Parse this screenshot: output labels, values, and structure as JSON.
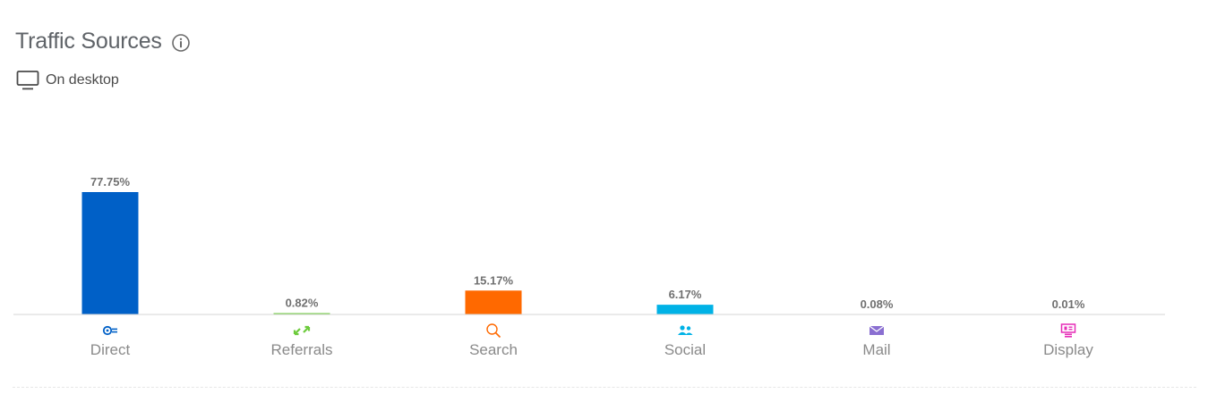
{
  "header": {
    "title": "Traffic Sources",
    "subtitle": "On desktop"
  },
  "icons": {
    "info": "info-icon",
    "device": "desktop-icon"
  },
  "chart_data": {
    "type": "bar",
    "categories": [
      "Direct",
      "Referrals",
      "Search",
      "Social",
      "Mail",
      "Display"
    ],
    "values": [
      77.75,
      0.82,
      15.17,
      6.17,
      0.08,
      0.01
    ],
    "value_labels": [
      "77.75%",
      "0.82%",
      "15.17%",
      "6.17%",
      "0.08%",
      "0.01%"
    ],
    "colors": [
      "#0060c7",
      "#6dcb3c",
      "#ff6900",
      "#00b2e6",
      "#8a6fd1",
      "#e62cb7"
    ],
    "category_icons": [
      "direct-icon",
      "referrals-icon",
      "search-icon",
      "social-icon",
      "mail-icon",
      "display-icon"
    ],
    "title": "",
    "xlabel": "",
    "ylabel": "",
    "ylim": [
      0,
      77.75
    ],
    "grid": false,
    "legend": "none"
  }
}
